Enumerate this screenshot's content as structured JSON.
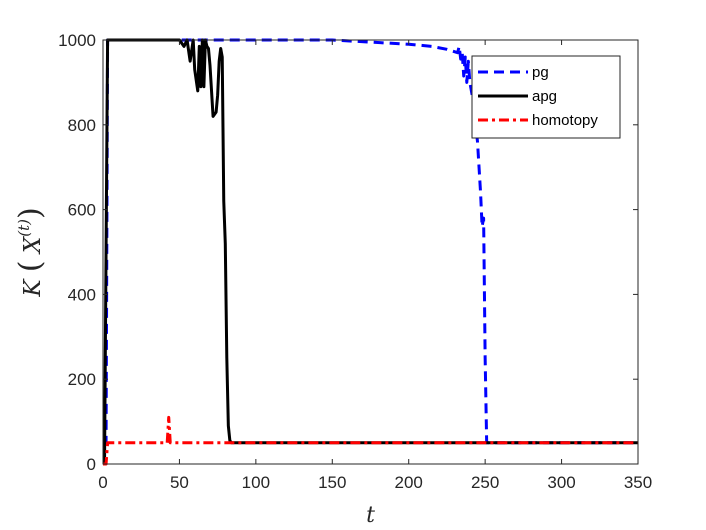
{
  "chart_data": {
    "type": "line",
    "xlabel": "t",
    "ylabel": "K(X^(t))",
    "ylabel_parts": {
      "k": "K",
      "x": "X",
      "sup": "(t)"
    },
    "xlim": [
      0,
      350
    ],
    "ylim": [
      0,
      1000
    ],
    "xticks": [
      0,
      50,
      100,
      150,
      200,
      250,
      300,
      350
    ],
    "yticks": [
      0,
      200,
      400,
      600,
      800,
      1000
    ],
    "grid": false,
    "legend_position": "top-right",
    "series": [
      {
        "name": "pg",
        "color": "#0000ff",
        "style": "dashed",
        "x": [
          0,
          2,
          3,
          50,
          100,
          150,
          175,
          200,
          215,
          225,
          232,
          233,
          234,
          235,
          236,
          237,
          238,
          239,
          240,
          242,
          245,
          247,
          248,
          249,
          250,
          251,
          252,
          260,
          300,
          350
        ],
        "y": [
          50,
          50,
          1000,
          1000,
          1000,
          1000,
          995,
          990,
          985,
          978,
          970,
          985,
          955,
          970,
          915,
          960,
          900,
          950,
          900,
          860,
          760,
          640,
          560,
          580,
          250,
          50,
          50,
          50,
          50,
          50
        ]
      },
      {
        "name": "apg",
        "color": "#000000",
        "style": "solid",
        "x": [
          0,
          1,
          3,
          4,
          50,
          53,
          55,
          57,
          59,
          60,
          62,
          63,
          64,
          65,
          66,
          67,
          68,
          69,
          70,
          72,
          74,
          75,
          76,
          77,
          78,
          79,
          80,
          81,
          82,
          83,
          84,
          85,
          86,
          88,
          100,
          150,
          200,
          250,
          300,
          350
        ],
        "y": [
          0,
          0,
          1000,
          1000,
          1000,
          985,
          1000,
          950,
          1000,
          930,
          880,
          985,
          890,
          1000,
          890,
          1000,
          985,
          980,
          940,
          820,
          830,
          870,
          950,
          980,
          960,
          620,
          520,
          250,
          90,
          55,
          50,
          50,
          50,
          50,
          50,
          50,
          50,
          50,
          50,
          50
        ]
      },
      {
        "name": "homotopy",
        "color": "#ff0000",
        "style": "dashdot",
        "x": [
          0,
          2,
          3,
          5,
          40,
          42,
          43,
          44,
          45,
          60,
          100,
          150,
          200,
          250,
          300,
          350
        ],
        "y": [
          0,
          0,
          50,
          50,
          50,
          50,
          110,
          50,
          50,
          50,
          50,
          50,
          50,
          50,
          50,
          50
        ]
      }
    ]
  }
}
